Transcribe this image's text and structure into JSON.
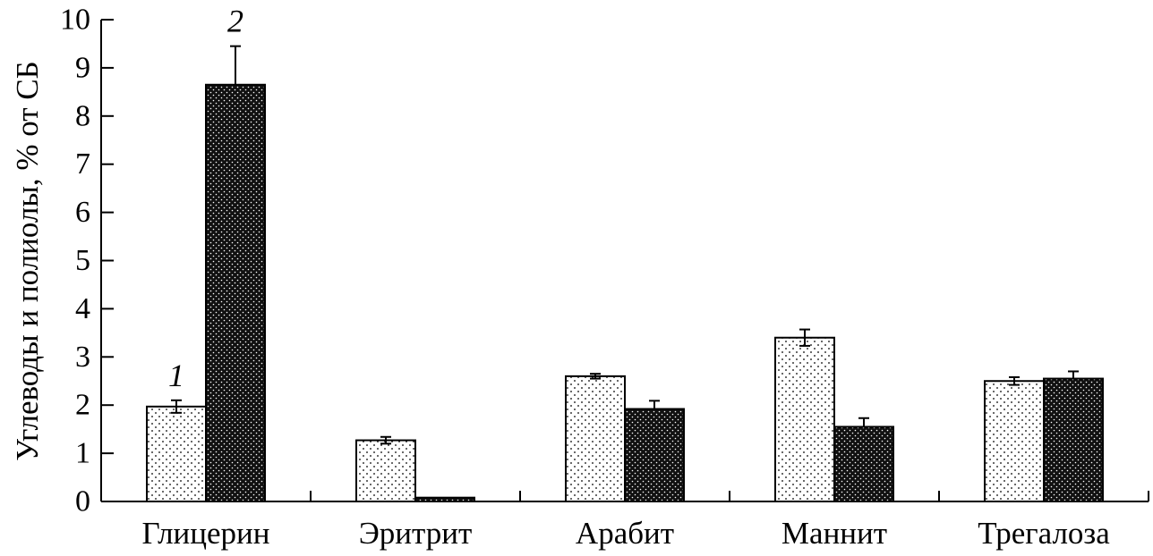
{
  "chart_data": {
    "type": "bar",
    "ylabel": "Углеводы и полиолы, % от СБ",
    "xlabel": "",
    "ylim": [
      0,
      10
    ],
    "yticks": [
      "0",
      "1",
      "2",
      "3",
      "4",
      "5",
      "6",
      "7",
      "8",
      "9",
      "10"
    ],
    "categories": [
      "Глицерин",
      "Эритрит",
      "Арабит",
      "Маннит",
      "Трегалоза"
    ],
    "series": [
      {
        "tag": "1",
        "fill": "dotted-light",
        "values": [
          1.97,
          1.27,
          2.6,
          3.4,
          2.5
        ],
        "errors": [
          0.13,
          0.07,
          0.05,
          0.17,
          0.08
        ]
      },
      {
        "tag": "2",
        "fill": "dotted-dark",
        "values": [
          8.65,
          0.08,
          1.92,
          1.55,
          2.55
        ],
        "errors": [
          0.8,
          0.0,
          0.17,
          0.18,
          0.15
        ]
      }
    ]
  },
  "colors": {
    "ink": "#000000",
    "paper": "#ffffff",
    "dark_fill": "#111111"
  }
}
